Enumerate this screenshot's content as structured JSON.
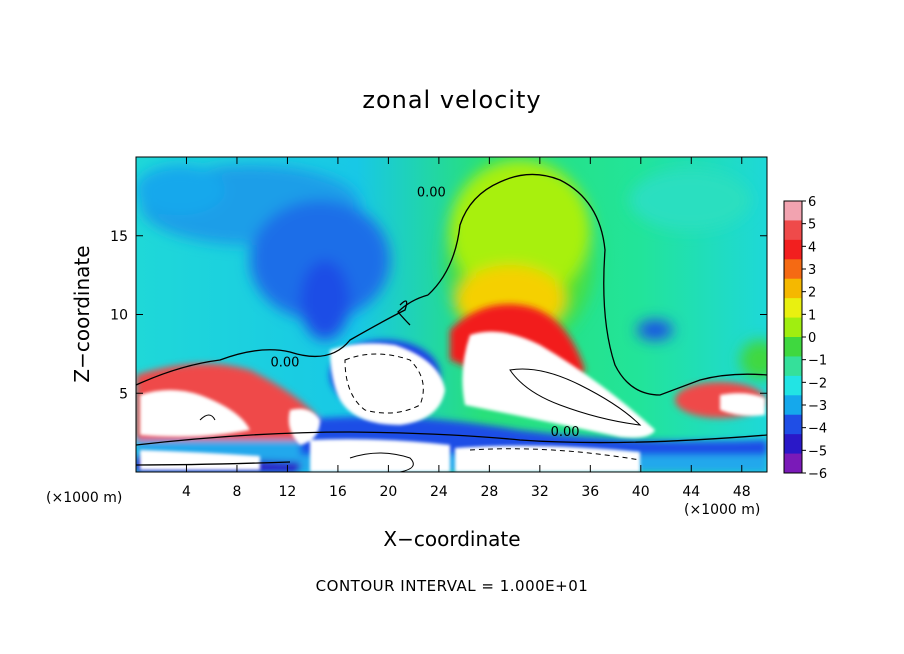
{
  "chart_data": {
    "type": "heatmap",
    "title": "zonal velocity",
    "xlabel": "X−coordinate",
    "ylabel": "Z−coordinate",
    "x_unit_left": "(×1000 m)",
    "x_unit_right": "(×1000 m)",
    "xlim": [
      0,
      50
    ],
    "ylim": [
      0,
      20
    ],
    "x_ticks": [
      4,
      8,
      12,
      16,
      20,
      24,
      28,
      32,
      36,
      40,
      44,
      48
    ],
    "y_ticks": [
      5,
      10,
      15
    ],
    "colorbar": {
      "ticks": [
        6,
        5,
        4,
        3,
        2,
        1,
        0,
        -1,
        -2,
        -3,
        -4,
        -5,
        -6
      ],
      "tick_labels": [
        "6",
        "5",
        "4",
        "3",
        "2",
        "1",
        "0",
        "−1",
        "−2",
        "−3",
        "−4",
        "−5",
        "−6"
      ],
      "colors": [
        "#f2a3b0",
        "#ef4a4a",
        "#f21f1f",
        "#f56a13",
        "#f5b800",
        "#e9f010",
        "#a0ee10",
        "#3fd83f",
        "#35e09a",
        "#22e4e4",
        "#15a8ec",
        "#1f4ee6",
        "#2a18c8",
        "#7a1ab8"
      ]
    },
    "contour_labels": [
      {
        "text": "0.00",
        "x": 23.4,
        "y": 17.5
      },
      {
        "text": "0.00",
        "x": 11.8,
        "y": 6.7
      },
      {
        "text": "0.00",
        "x": 34.0,
        "y": 2.3
      }
    ],
    "footer": "CONTOUR INTERVAL = 1.000E+01"
  }
}
